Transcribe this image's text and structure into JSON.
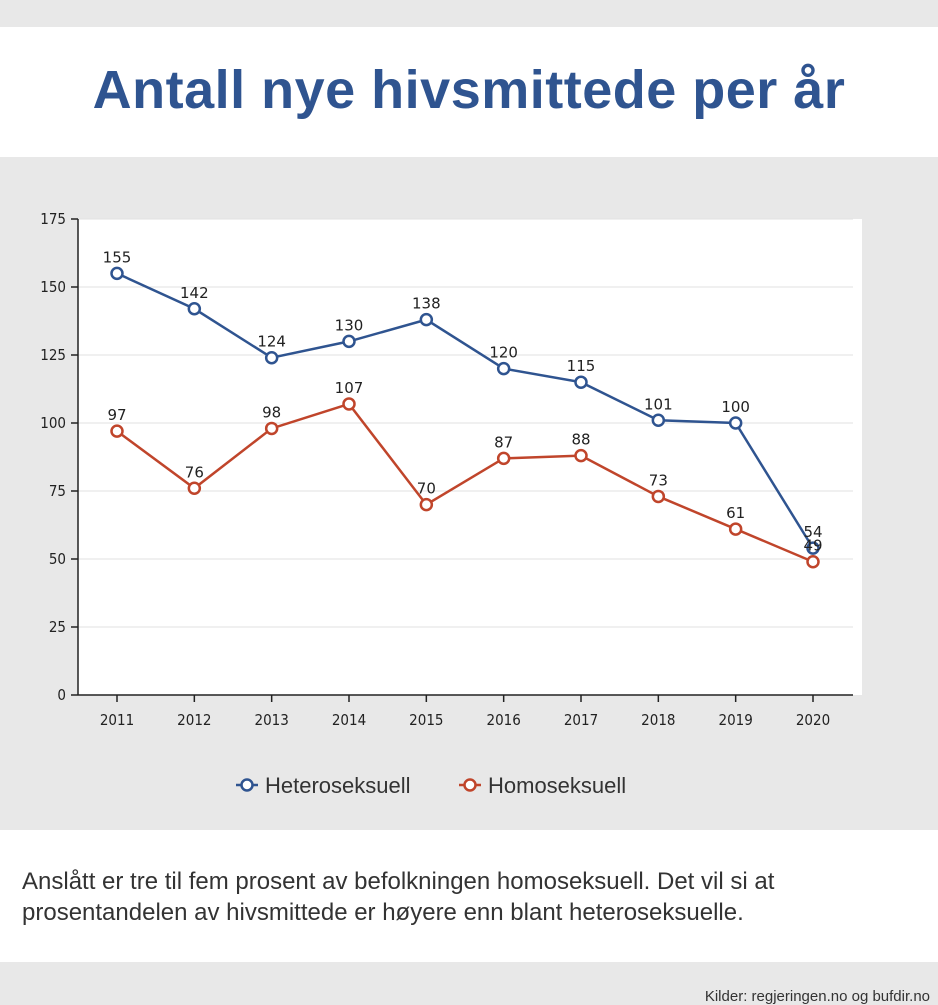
{
  "header": {
    "title": "Antall nye hivsmittede per år"
  },
  "chart_data": {
    "type": "line",
    "x": [
      "2011",
      "2012",
      "2013",
      "2014",
      "2015",
      "2016",
      "2017",
      "2018",
      "2019",
      "2020"
    ],
    "series": [
      {
        "name": "Heteroseksuell",
        "values": [
          155,
          142,
          124,
          130,
          138,
          120,
          115,
          101,
          100,
          54
        ],
        "color": "#2f5490"
      },
      {
        "name": "Homoseksuell",
        "values": [
          97,
          76,
          98,
          107,
          70,
          87,
          88,
          73,
          61,
          49
        ],
        "color": "#c0452b"
      }
    ],
    "ylim": [
      0,
      175
    ],
    "yticks": [
      0,
      25,
      50,
      75,
      100,
      125,
      150,
      175
    ],
    "grid": true,
    "legend": "bottom-center",
    "data_labels": true
  },
  "note": "Anslått er tre til fem prosent av befolkningen homoseksuell. Det vil si at prosentandelen av hivsmittede er høyere enn blant heteroseksuelle.",
  "source": "Kilder: regjeringen.no og bufdir.no"
}
